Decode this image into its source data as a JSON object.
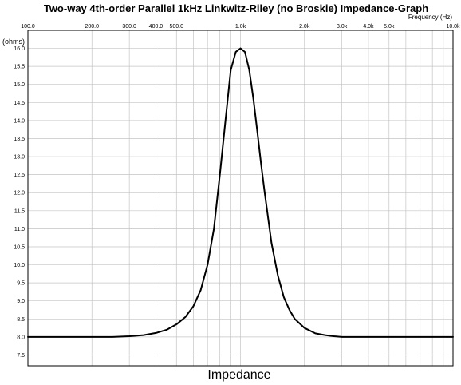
{
  "chart_data": {
    "type": "line",
    "title": "Two-way 4th-order Parallel 1kHz Linkwitz-Riley (no Broskie) Impedance-Graph",
    "xlabel": "Frequency  (Hz)",
    "ylabel": "(ohms)",
    "x_scale": "log",
    "xlim": [
      100,
      10000
    ],
    "ylim": [
      7.2,
      16.5
    ],
    "grid": true,
    "legend": "bottom-center",
    "x_ticks": [
      {
        "value": 100,
        "label": "100.0"
      },
      {
        "value": 200,
        "label": "200.0"
      },
      {
        "value": 300,
        "label": "300.0"
      },
      {
        "value": 400,
        "label": "400.0"
      },
      {
        "value": 500,
        "label": "500.0"
      },
      {
        "value": 1000,
        "label": "1.0k"
      },
      {
        "value": 2000,
        "label": "2.0k"
      },
      {
        "value": 3000,
        "label": "3.0k"
      },
      {
        "value": 4000,
        "label": "4.0k"
      },
      {
        "value": 5000,
        "label": "5.0k"
      },
      {
        "value": 10000,
        "label": "10.0k"
      }
    ],
    "x_minor_grid": [
      600,
      700,
      800,
      900,
      6000,
      7000,
      8000,
      9000
    ],
    "y_ticks": [
      {
        "value": 16.0,
        "label": "16.0"
      },
      {
        "value": 15.5,
        "label": "15.5"
      },
      {
        "value": 15.0,
        "label": "15.0"
      },
      {
        "value": 14.5,
        "label": "14.5"
      },
      {
        "value": 14.0,
        "label": "14.0"
      },
      {
        "value": 13.5,
        "label": "13.5"
      },
      {
        "value": 13.0,
        "label": "13.0"
      },
      {
        "value": 12.5,
        "label": "12.5"
      },
      {
        "value": 12.0,
        "label": "12.0"
      },
      {
        "value": 11.5,
        "label": "11.5"
      },
      {
        "value": 11.0,
        "label": "11.0"
      },
      {
        "value": 10.5,
        "label": "10.5"
      },
      {
        "value": 10.0,
        "label": "10.0"
      },
      {
        "value": 9.5,
        "label": "9.5"
      },
      {
        "value": 9.0,
        "label": "9.0"
      },
      {
        "value": 8.5,
        "label": "8.5"
      },
      {
        "value": 8.0,
        "label": "8.0"
      },
      {
        "value": 7.5,
        "label": "7.5"
      }
    ],
    "series": [
      {
        "name": "Impedance",
        "color": "#000000",
        "x": [
          100,
          150,
          200,
          250,
          300,
          350,
          400,
          450,
          500,
          550,
          600,
          650,
          700,
          750,
          800,
          850,
          900,
          950,
          1000,
          1050,
          1100,
          1150,
          1200,
          1250,
          1300,
          1400,
          1500,
          1600,
          1700,
          1800,
          2000,
          2250,
          2500,
          2750,
          3000,
          3500,
          4000,
          5000,
          6000,
          7000,
          8000,
          10000
        ],
        "values": [
          8.0,
          8.0,
          8.0,
          8.0,
          8.02,
          8.05,
          8.11,
          8.2,
          8.35,
          8.55,
          8.85,
          9.3,
          10.0,
          11.0,
          12.5,
          14.0,
          15.4,
          15.9,
          16.0,
          15.9,
          15.4,
          14.6,
          13.7,
          12.8,
          12.0,
          10.6,
          9.7,
          9.1,
          8.75,
          8.5,
          8.25,
          8.1,
          8.05,
          8.02,
          8.0,
          8.0,
          8.0,
          8.0,
          8.0,
          8.0,
          8.0,
          8.0
        ]
      }
    ]
  }
}
